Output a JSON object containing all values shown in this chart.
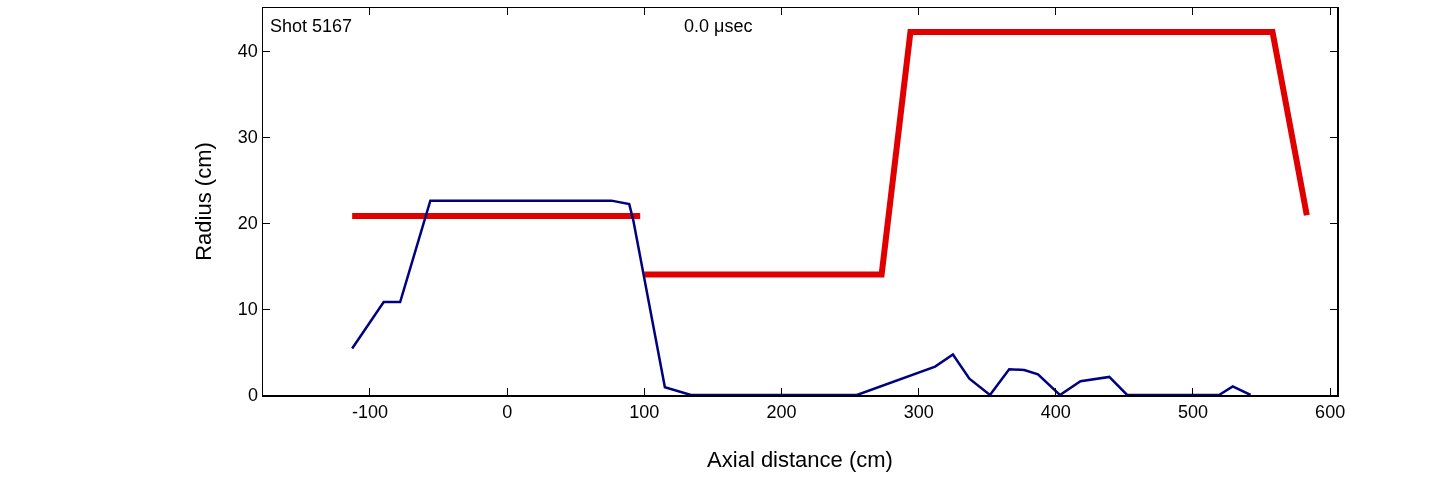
{
  "chart_data": {
    "type": "line",
    "xlabel": "Axial distance (cm)",
    "ylabel": "Radius (cm)",
    "annotations": [
      "Shot 5167",
      "0.0 μsec"
    ],
    "xlim": [
      -178,
      605
    ],
    "ylim": [
      0,
      45
    ],
    "xticks": [
      -100,
      0,
      100,
      200,
      300,
      400,
      500,
      600
    ],
    "yticks": [
      0,
      10,
      20,
      30,
      40
    ],
    "marker": "none",
    "line_style": "solid",
    "series": [
      {
        "color": "#e00000",
        "x": [
          -113,
          97,
          98,
          100,
          273,
          294,
          558,
          583
        ],
        "values": [
          20.8,
          20.8,
          null,
          14,
          14,
          42.2,
          42.2,
          20.9
        ]
      },
      {
        "color": "#000080",
        "x": [
          -113,
          -90,
          -78,
          -56,
          76,
          89,
          92,
          115,
          134,
          255,
          312,
          325,
          337,
          352,
          366,
          377,
          387,
          403,
          418,
          439,
          452,
          519,
          529,
          542
        ],
        "values": [
          5.4,
          10.8,
          10.8,
          22.6,
          22.6,
          22.2,
          20.3,
          0.9,
          0,
          0,
          3.3,
          4.7,
          1.9,
          0,
          3.0,
          2.9,
          2.4,
          0,
          1.6,
          2.1,
          0,
          0,
          1.0,
          0
        ]
      }
    ]
  }
}
